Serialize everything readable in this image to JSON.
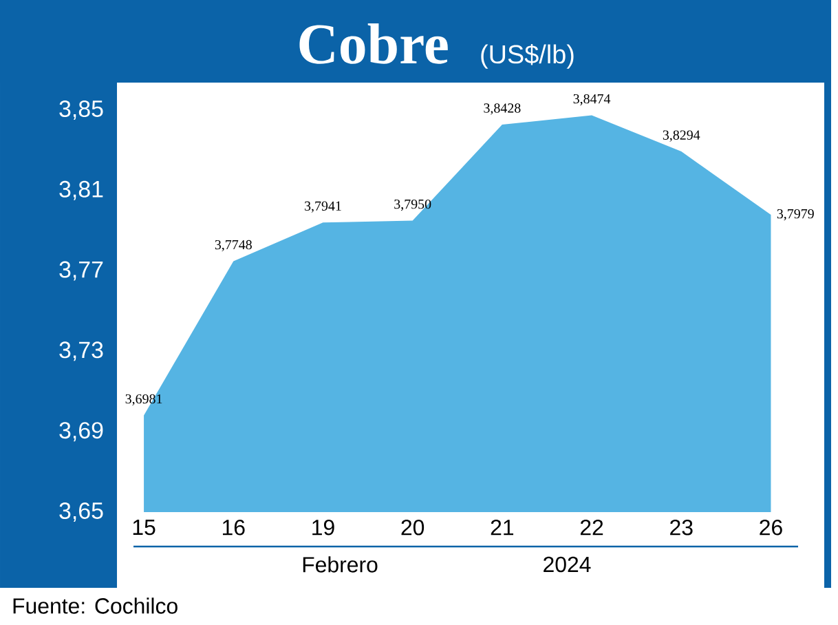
{
  "chart_data": {
    "type": "area",
    "title": "Cobre",
    "subtitle": "(US$/lb)",
    "categories": [
      "15",
      "16",
      "19",
      "20",
      "21",
      "22",
      "23",
      "26"
    ],
    "values": [
      3.6981,
      3.7748,
      3.7941,
      3.795,
      3.8428,
      3.8474,
      3.8294,
      3.7979
    ],
    "value_labels": [
      "3,6981",
      "3,7748",
      "3,7941",
      "3,7950",
      "3,8428",
      "3,8474",
      "3,8294",
      "3,7979"
    ],
    "color": "#55b4e3",
    "ylim": [
      3.65,
      3.85
    ],
    "yticks": [
      {
        "value": 3.65,
        "label": "3,65"
      },
      {
        "value": 3.69,
        "label": "3,69"
      },
      {
        "value": 3.73,
        "label": "3,73"
      },
      {
        "value": 3.77,
        "label": "3,77"
      },
      {
        "value": 3.81,
        "label": "3,81"
      },
      {
        "value": 3.85,
        "label": "3,85"
      }
    ],
    "annotations": [
      "Febrero",
      "2024",
      "Fuente: Cochilco"
    ]
  }
}
